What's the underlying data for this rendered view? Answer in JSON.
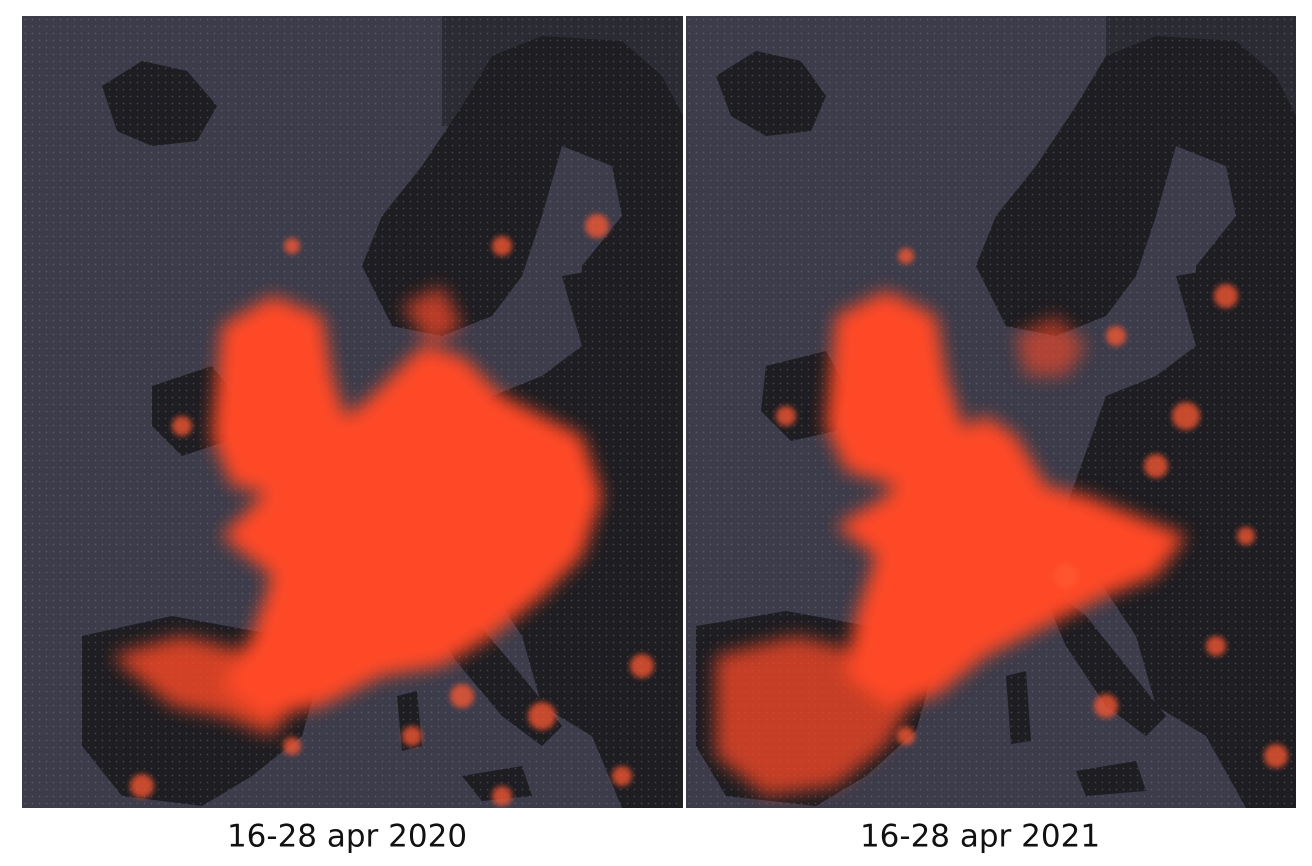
{
  "panels": [
    {
      "caption": "16-28 apr 2020"
    },
    {
      "caption": "16-28 apr 2021"
    }
  ]
}
